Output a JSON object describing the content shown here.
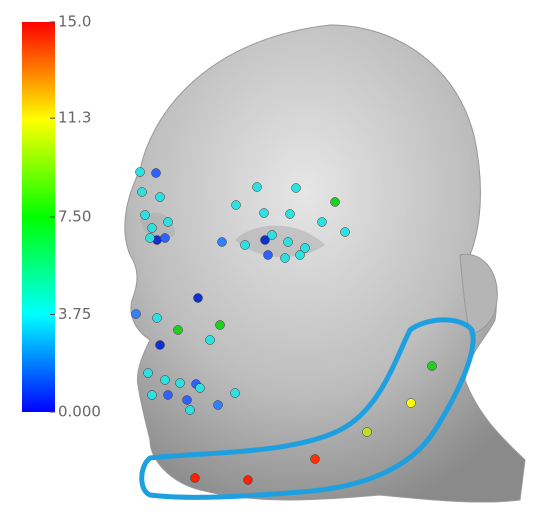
{
  "colorbar": {
    "min": 0,
    "max": 15,
    "ticks": [
      {
        "value": 15,
        "label": "15.0"
      },
      11.3,
      {
        "value": 7.5,
        "label": "7.50"
      },
      3.75,
      {
        "value": 0,
        "label": "0.000"
      }
    ]
  }
}
